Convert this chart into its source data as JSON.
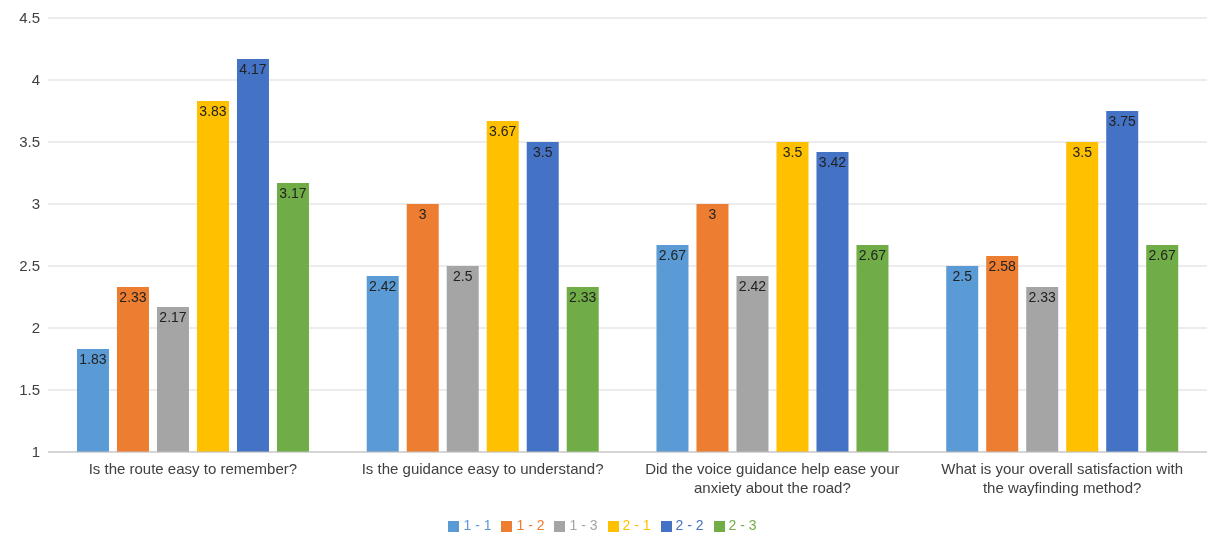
{
  "chart_data": {
    "type": "bar",
    "categories": [
      "Is the route easy to remember?",
      "Is the guidance easy to understand?",
      "Did the voice guidance help ease your anxiety about the road?",
      "What is your overall satisfaction with the wayfinding method?"
    ],
    "series": [
      {
        "name": "1 - 1",
        "color": "#5b9bd5",
        "values": [
          1.83,
          2.42,
          2.67,
          2.5
        ]
      },
      {
        "name": "1 - 2",
        "color": "#ed7d31",
        "values": [
          2.33,
          3,
          3,
          2.58
        ]
      },
      {
        "name": "1 - 3",
        "color": "#a5a5a5",
        "values": [
          2.17,
          2.5,
          2.42,
          2.33
        ]
      },
      {
        "name": "2 - 1",
        "color": "#ffc000",
        "values": [
          3.83,
          3.67,
          3.5,
          3.5
        ]
      },
      {
        "name": "2 - 2",
        "color": "#4472c4",
        "values": [
          4.17,
          3.5,
          3.42,
          3.75
        ]
      },
      {
        "name": "2 - 3",
        "color": "#70ad47",
        "values": [
          3.17,
          2.33,
          2.67,
          2.67
        ]
      }
    ],
    "ylim": [
      1,
      4.5
    ],
    "yticks": [
      1,
      1.5,
      2,
      2.5,
      3,
      3.5,
      4,
      4.5
    ],
    "grid": "y",
    "legend": "bottom",
    "data_labels": true
  }
}
